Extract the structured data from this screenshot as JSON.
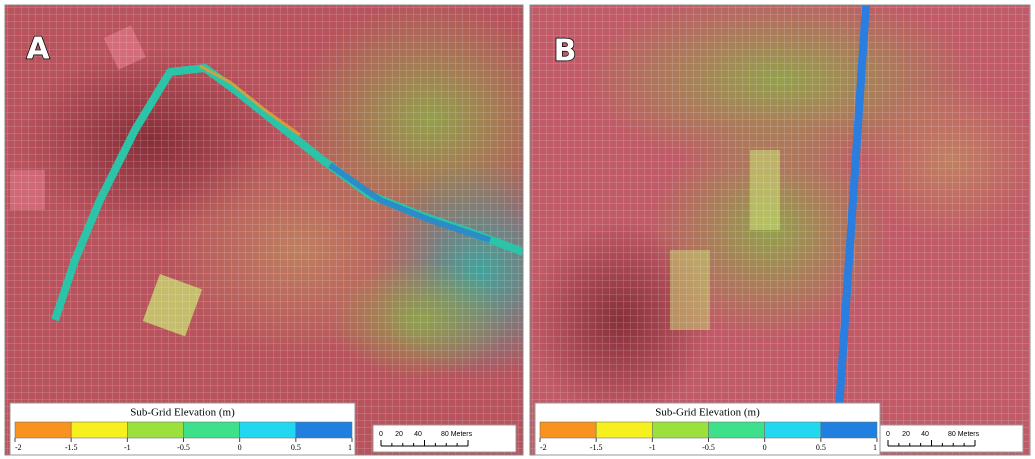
{
  "panels": [
    {
      "label": "A"
    },
    {
      "label": "B"
    }
  ],
  "legend": {
    "title": "Sub-Grid Elevation (m)",
    "ticks": [
      "-2",
      "-1.5",
      "-1",
      "-0.5",
      "0",
      "0.5",
      "1"
    ],
    "colors": [
      "#f7931e",
      "#f5f01e",
      "#9be03c",
      "#3ee08c",
      "#22d8f0",
      "#2080e0"
    ]
  },
  "scale_bar": {
    "ticks": [
      "0",
      "20",
      "40",
      "80 Meters"
    ]
  }
}
